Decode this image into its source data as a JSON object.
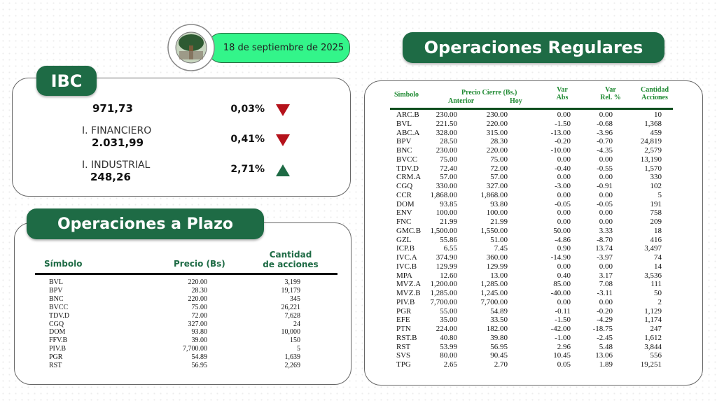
{
  "logo": {
    "text_top": "BOLSA DE VALORES",
    "text_bottom": "DE CARACAS"
  },
  "date": "18 de septiembre de 2025",
  "ibc": {
    "title": "IBC",
    "rows": [
      {
        "label": "",
        "value": "971,73",
        "change": "0,03%",
        "direction": "down"
      },
      {
        "label": "I. FINANCIERO",
        "value": "2.031,99",
        "change": "0,41%",
        "direction": "down"
      },
      {
        "label": "I. INDUSTRIAL",
        "value": "248,26",
        "change": "2,71%",
        "direction": "up"
      }
    ]
  },
  "colors": {
    "brand": "#1e6b45",
    "date_pill": "#33f58a",
    "down": "#b5121b",
    "up": "#1e6b45",
    "header_green": "#1f8a32"
  },
  "plazo": {
    "title": "Operaciones a Plazo",
    "headers": {
      "symbol": "Símbolo",
      "price": "Precio (Bs)",
      "qty_1": "Cantidad",
      "qty_2": "de acciones"
    },
    "rows": [
      [
        "BVL",
        "220.00",
        "3,199"
      ],
      [
        "BPV",
        "28.30",
        "19,179"
      ],
      [
        "BNC",
        "220.00",
        "345"
      ],
      [
        "BVCC",
        "75.00",
        "26,221"
      ],
      [
        "TDV.D",
        "72.00",
        "7,628"
      ],
      [
        "CGQ",
        "327.00",
        "24"
      ],
      [
        "DOM",
        "93.80",
        "10,000"
      ],
      [
        "FFV.B",
        "39.00",
        "150"
      ],
      [
        "PIV.B",
        "7,700.00",
        "5"
      ],
      [
        "PGR",
        "54.89",
        "1,639"
      ],
      [
        "RST",
        "56.95",
        "2,269"
      ]
    ]
  },
  "regulares": {
    "title": "Operaciones Regulares",
    "headers": {
      "symbol": "Simbolo",
      "price": "Precio Cierre (Bs.)",
      "prev": "Anterior",
      "today": "Hoy",
      "var_abs_1": "Var",
      "var_abs_2": "Abs",
      "var_rel_1": "Var",
      "var_rel_2": "Rel. %",
      "qty_1": "Cantidad",
      "qty_2": "Acciones"
    },
    "rows": [
      [
        "ARC.B",
        "230.00",
        "230.00",
        "0.00",
        "0.00",
        "10"
      ],
      [
        "BVL",
        "221.50",
        "220.00",
        "-1.50",
        "-0.68",
        "1,368"
      ],
      [
        "ABC.A",
        "328.00",
        "315.00",
        "-13.00",
        "-3.96",
        "459"
      ],
      [
        "BPV",
        "28.50",
        "28.30",
        "-0.20",
        "-0.70",
        "24,819"
      ],
      [
        "BNC",
        "230.00",
        "220.00",
        "-10.00",
        "-4.35",
        "2,579"
      ],
      [
        "BVCC",
        "75.00",
        "75.00",
        "0.00",
        "0.00",
        "13,190"
      ],
      [
        "TDV.D",
        "72.40",
        "72.00",
        "-0.40",
        "-0.55",
        "1,570"
      ],
      [
        "CRM.A",
        "57.00",
        "57.00",
        "0.00",
        "0.00",
        "330"
      ],
      [
        "CGQ",
        "330.00",
        "327.00",
        "-3.00",
        "-0.91",
        "102"
      ],
      [
        "CCR",
        "1,868.00",
        "1,868.00",
        "0.00",
        "0.00",
        "5"
      ],
      [
        "DOM",
        "93.85",
        "93.80",
        "-0.05",
        "-0.05",
        "191"
      ],
      [
        "ENV",
        "100.00",
        "100.00",
        "0.00",
        "0.00",
        "758"
      ],
      [
        "FNC",
        "21.99",
        "21.99",
        "0.00",
        "0.00",
        "209"
      ],
      [
        "GMC.B",
        "1,500.00",
        "1,550.00",
        "50.00",
        "3.33",
        "18"
      ],
      [
        "GZL",
        "55.86",
        "51.00",
        "-4.86",
        "-8.70",
        "416"
      ],
      [
        "ICP.B",
        "6.55",
        "7.45",
        "0.90",
        "13.74",
        "3,497"
      ],
      [
        "IVC.A",
        "374.90",
        "360.00",
        "-14.90",
        "-3.97",
        "74"
      ],
      [
        "IVC.B",
        "129.99",
        "129.99",
        "0.00",
        "0.00",
        "14"
      ],
      [
        "MPA",
        "12.60",
        "13.00",
        "0.40",
        "3.17",
        "3,536"
      ],
      [
        "MVZ.A",
        "1,200.00",
        "1,285.00",
        "85.00",
        "7.08",
        "111"
      ],
      [
        "MVZ.B",
        "1,285.00",
        "1,245.00",
        "-40.00",
        "-3.11",
        "50"
      ],
      [
        "PIV.B",
        "7,700.00",
        "7,700.00",
        "0.00",
        "0.00",
        "2"
      ],
      [
        "PGR",
        "55.00",
        "54.89",
        "-0.11",
        "-0.20",
        "1,129"
      ],
      [
        "EFE",
        "35.00",
        "33.50",
        "-1.50",
        "-4.29",
        "1,174"
      ],
      [
        "PTN",
        "224.00",
        "182.00",
        "-42.00",
        "-18.75",
        "247"
      ],
      [
        "RST.B",
        "40.80",
        "39.80",
        "-1.00",
        "-2.45",
        "1,612"
      ],
      [
        "RST",
        "53.99",
        "56.95",
        "2.96",
        "5.48",
        "3,844"
      ],
      [
        "SVS",
        "80.00",
        "90.45",
        "10.45",
        "13.06",
        "556"
      ],
      [
        "TPG",
        "2.65",
        "2.70",
        "0.05",
        "1.89",
        "19,251"
      ]
    ]
  }
}
